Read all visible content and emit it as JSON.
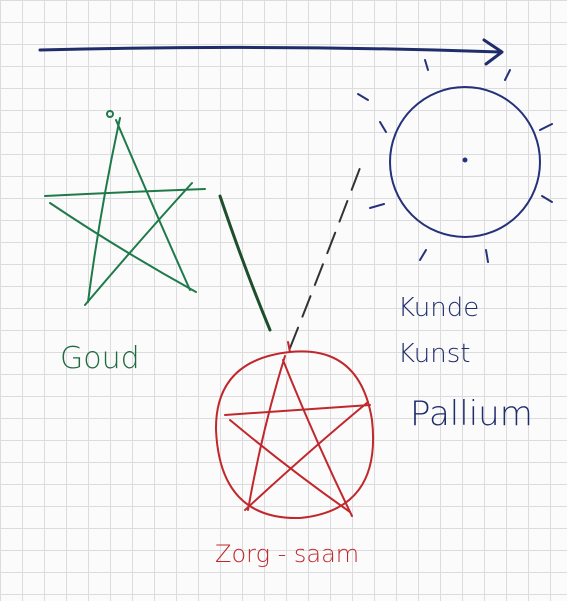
{
  "labels": [
    "Goud",
    "Kunde",
    "Kunst",
    "Pallium",
    "Zorg - saam"
  ]
}
